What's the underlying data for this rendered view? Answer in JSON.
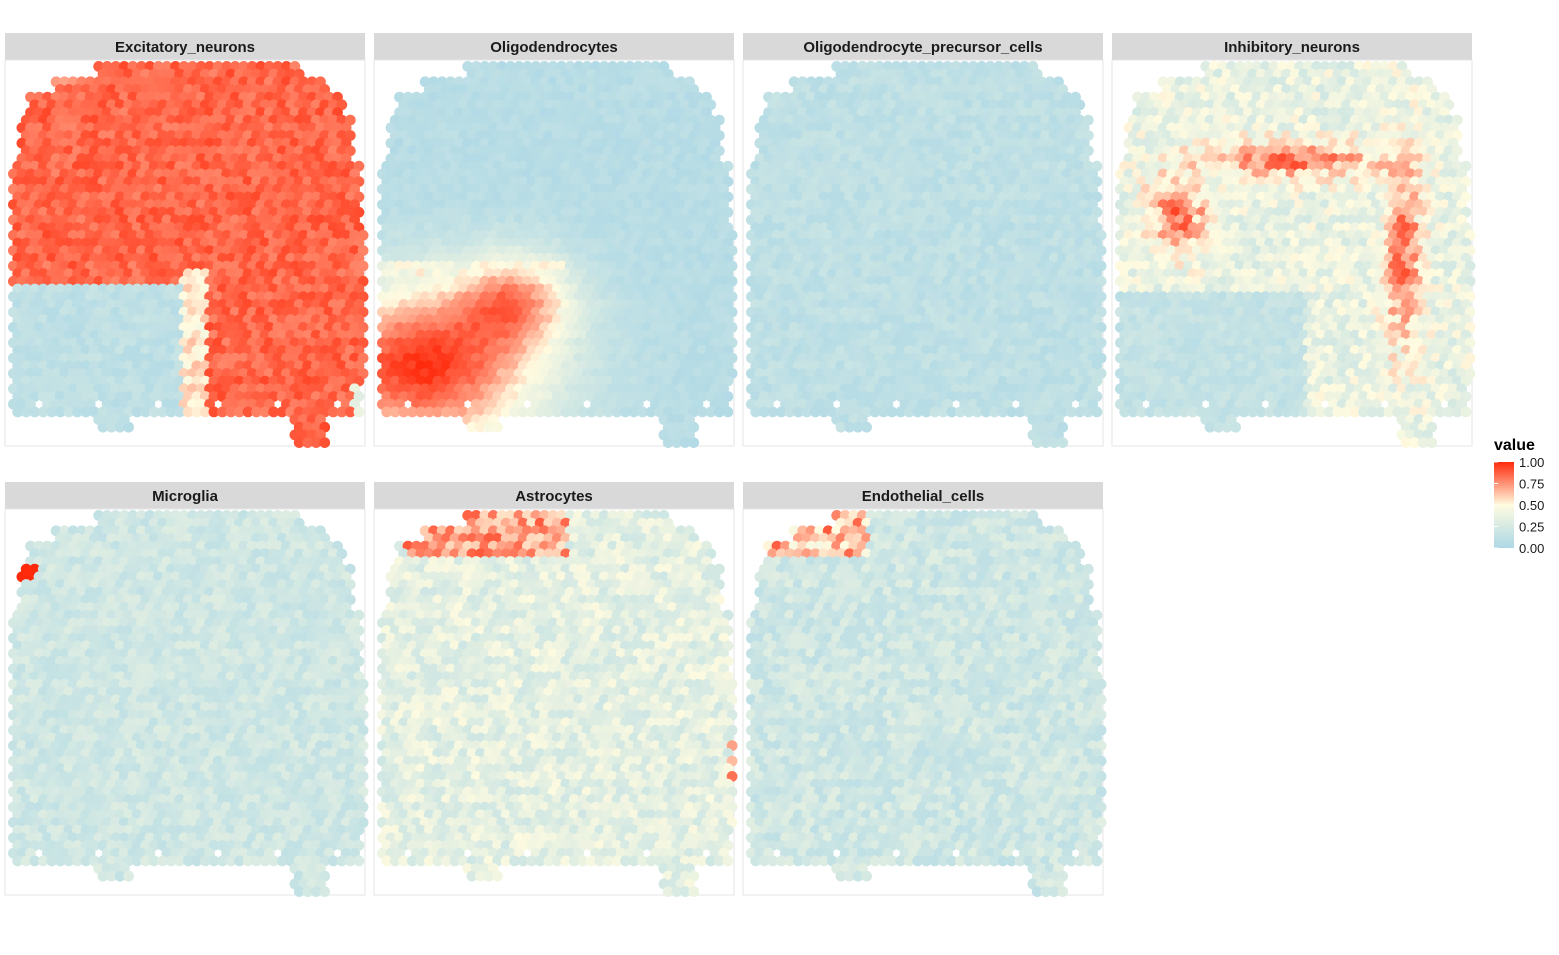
{
  "chart_data": {
    "type": "heatmap",
    "title": "",
    "xlabel": "",
    "ylabel": "",
    "facets": [
      {
        "name": "Excitatory_neurons",
        "pattern": "excitatory"
      },
      {
        "name": "Oligodendrocytes",
        "pattern": "oligo"
      },
      {
        "name": "Oligodendrocyte_precursor_cells",
        "pattern": "opc"
      },
      {
        "name": "Inhibitory_neurons",
        "pattern": "inhibitory"
      },
      {
        "name": "Microglia",
        "pattern": "microglia"
      },
      {
        "name": "Astrocytes",
        "pattern": "astro"
      },
      {
        "name": "Endothelial_cells",
        "pattern": "endo"
      }
    ],
    "facet_columns": 4,
    "grid_columns": 45,
    "grid_rows": 50,
    "legend": {
      "title": "value",
      "ticks": [
        "1.00",
        "0.75",
        "0.50",
        "0.25",
        "0.00"
      ],
      "tick_values": [
        1.0,
        0.75,
        0.5,
        0.25,
        0.0
      ],
      "placement": "right"
    },
    "color_scale": {
      "low": "#add8e6",
      "mid": "#fffbe0",
      "high": "#ff2a0c",
      "domain": [
        0,
        1
      ]
    },
    "strip_color": "#d9d9d9",
    "panel_border_color": "#e5e5e5"
  }
}
